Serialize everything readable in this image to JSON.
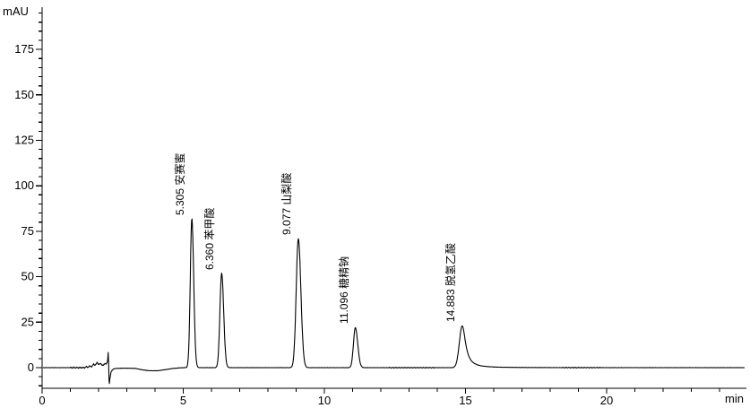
{
  "window": {
    "background": "#ffffff",
    "trace_color": "#000000",
    "axis_color": "#000000"
  },
  "chart_data": {
    "type": "line",
    "title": "",
    "xlabel": "min",
    "ylabel": "mAU",
    "x_axis": {
      "min": 0,
      "max": 24.95,
      "labeled_ticks": [
        0,
        5,
        10,
        15,
        20
      ],
      "minor_step": 1
    },
    "y_axis": {
      "min": -11,
      "max": 198,
      "labeled_ticks": [
        0,
        25,
        50,
        75,
        100,
        125,
        150,
        175
      ],
      "minor_step": 5
    },
    "grid": false,
    "legend": false,
    "peaks": [
      {
        "rt": "5.305",
        "rt_value": 5.305,
        "name": "安赛蜜",
        "height_mau": 82,
        "sigma_left": 0.055,
        "sigma_right": 0.065,
        "tail_gamma": null
      },
      {
        "rt": "6.360",
        "rt_value": 6.36,
        "name": "苯甲酸",
        "height_mau": 52,
        "sigma_left": 0.06,
        "sigma_right": 0.072,
        "tail_gamma": null
      },
      {
        "rt": "9.077",
        "rt_value": 9.077,
        "name": "山梨酸",
        "height_mau": 71,
        "sigma_left": 0.075,
        "sigma_right": 0.09,
        "tail_gamma": null
      },
      {
        "rt": "11.096",
        "rt_value": 11.096,
        "name": "糖精钠",
        "height_mau": 22,
        "sigma_left": 0.065,
        "sigma_right": 0.085,
        "tail_gamma": null
      },
      {
        "rt": "14.883",
        "rt_value": 14.883,
        "name": "脱氢乙酸",
        "height_mau": 23,
        "sigma_left": 0.1,
        "sigma_right": 0.13,
        "tail_gamma": 0.145
      }
    ],
    "injection_disturbance": {
      "points": [
        [
          1.5,
          0
        ],
        [
          1.58,
          0.5
        ],
        [
          1.63,
          0.2
        ],
        [
          1.7,
          1.0
        ],
        [
          1.76,
          0.4
        ],
        [
          1.83,
          2.2
        ],
        [
          1.88,
          1.0
        ],
        [
          1.95,
          3.2
        ],
        [
          2.0,
          1.4
        ],
        [
          2.06,
          2.6
        ],
        [
          2.12,
          1.2
        ],
        [
          2.2,
          1.8
        ],
        [
          2.28,
          2.4
        ],
        [
          2.32,
          3.2
        ],
        [
          2.345,
          9.5
        ],
        [
          2.36,
          0
        ],
        [
          2.375,
          -10.5
        ],
        [
          2.4,
          -6.0
        ],
        [
          2.45,
          -2.0
        ],
        [
          2.52,
          -0.8
        ],
        [
          2.62,
          -0.4
        ],
        [
          2.9,
          -0.3
        ],
        [
          3.3,
          -0.4
        ],
        [
          3.55,
          -1.2
        ],
        [
          3.8,
          -1.7
        ],
        [
          4.1,
          -1.7
        ],
        [
          4.4,
          -1.0
        ],
        [
          4.65,
          -0.4
        ],
        [
          4.9,
          -0.1
        ],
        [
          5.05,
          0
        ]
      ]
    },
    "noise_base_mau": 0.1,
    "noise_zones": [
      {
        "from": 1.0,
        "to": 2.3,
        "amp": 0.45
      },
      {
        "from": 12.3,
        "to": 13.9,
        "amp": 0.28
      },
      {
        "from": 18.4,
        "to": 19.8,
        "amp": 0.28
      }
    ]
  }
}
